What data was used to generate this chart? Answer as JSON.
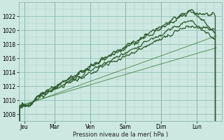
{
  "xlabel": "Pression niveau de la mer( hPa )",
  "background_color": "#cce8e0",
  "grid_color": "#aacfc8",
  "grid_color_major": "#88b8b0",
  "line_color_main": "#2d5a2d",
  "line_color_thin": "#3a7a3a",
  "ylim": [
    1007,
    1024
  ],
  "yticks": [
    1008,
    1010,
    1012,
    1014,
    1016,
    1018,
    1020,
    1022
  ],
  "xlim": [
    0,
    5.7
  ],
  "days": [
    "Jeu",
    "Mar",
    "Ven",
    "Sam",
    "Dim",
    "Lun"
  ],
  "day_x": [
    0.15,
    1.0,
    2.0,
    3.0,
    4.0,
    5.0
  ],
  "vline_x": [
    0.15,
    1.0,
    2.0,
    3.0,
    4.0,
    5.0
  ]
}
